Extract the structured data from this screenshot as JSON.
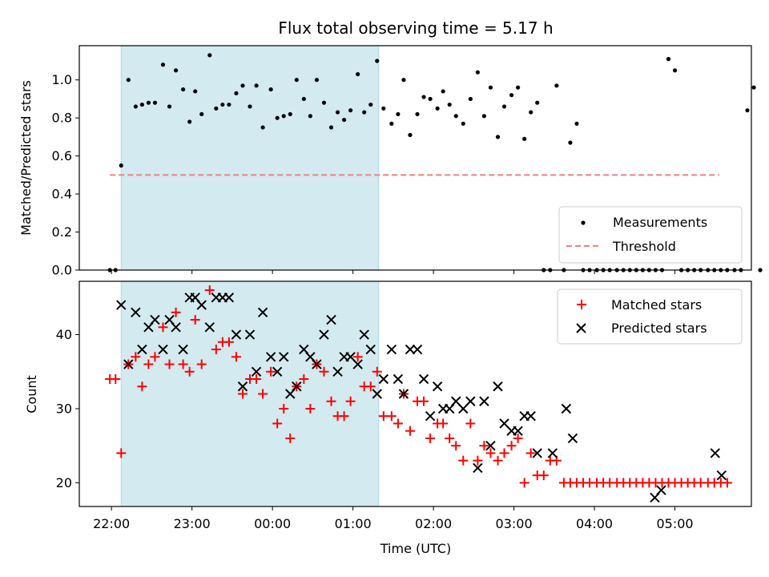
{
  "figure": {
    "title": "Flux total observing time = 5.17 h"
  },
  "chart_data": [
    {
      "type": "scatter",
      "panel": "top",
      "xlabel": "",
      "ylabel": "Matched/Predicted stars",
      "x_unit": "hours since 22:00 UTC",
      "xlim": [
        -0.4,
        7.95
      ],
      "ylim": [
        0,
        1.18
      ],
      "yticks": [
        0.0,
        0.2,
        0.4,
        0.6,
        0.8,
        1.0
      ],
      "yticklabels": [
        "0.0",
        "0.2",
        "0.4",
        "0.6",
        "0.8",
        "1.0"
      ],
      "observing_window": [
        0.12,
        3.32
      ],
      "observing_window_color": "#d3eaf0",
      "legend_position": "lower right",
      "series": [
        {
          "name": "Measurements",
          "marker": "dot",
          "color": "#000000",
          "x": [
            -0.02,
            0.05,
            0.12,
            0.21,
            0.3,
            0.38,
            0.46,
            0.54,
            0.64,
            0.72,
            0.8,
            0.89,
            0.97,
            1.04,
            1.12,
            1.22,
            1.3,
            1.38,
            1.46,
            1.55,
            1.63,
            1.72,
            1.8,
            1.88,
            1.98,
            2.06,
            2.14,
            2.22,
            2.3,
            2.39,
            2.47,
            2.55,
            2.64,
            2.73,
            2.81,
            2.89,
            2.97,
            3.06,
            3.14,
            3.22,
            3.3,
            3.38,
            3.48,
            3.56,
            3.63,
            3.71,
            3.8,
            3.88,
            3.96,
            4.05,
            4.12,
            4.2,
            4.28,
            4.37,
            4.46,
            4.55,
            4.63,
            4.71,
            4.8,
            4.88,
            4.97,
            5.05,
            5.13,
            5.21,
            5.29,
            5.37,
            5.45,
            5.53,
            5.62,
            5.7,
            5.78,
            5.86,
            5.94,
            6.03,
            6.11,
            6.19,
            6.28,
            6.36,
            6.44,
            6.52,
            6.6,
            6.68,
            6.76,
            6.84,
            6.92,
            7.0,
            7.08,
            7.16,
            7.24,
            7.32,
            7.41,
            7.49,
            7.57,
            7.65,
            7.74,
            7.82,
            7.9,
            7.98,
            8.06
          ],
          "y": [
            0.0,
            0.0,
            0.55,
            1.0,
            0.86,
            0.87,
            0.88,
            0.88,
            1.08,
            0.86,
            1.05,
            0.95,
            0.78,
            0.94,
            0.82,
            1.13,
            0.85,
            0.87,
            0.87,
            0.93,
            0.97,
            0.86,
            0.97,
            0.75,
            0.95,
            0.8,
            0.81,
            0.82,
            1.0,
            0.9,
            0.81,
            1.0,
            0.88,
            0.75,
            0.83,
            0.79,
            0.84,
            1.03,
            0.83,
            0.87,
            1.1,
            0.85,
            0.77,
            0.82,
            1.0,
            0.71,
            0.82,
            0.91,
            0.9,
            0.85,
            0.94,
            0.87,
            0.81,
            0.77,
            0.9,
            1.04,
            0.81,
            0.96,
            0.7,
            0.86,
            0.92,
            0.96,
            0.69,
            0.83,
            0.88,
            0.0,
            0.0,
            0.97,
            0.0,
            0.67,
            0.77,
            0.0,
            0.0,
            0.0,
            0.0,
            0.0,
            0.0,
            0.0,
            0.0,
            0.0,
            0.0,
            0.0,
            0.0,
            0.0,
            1.11,
            1.05,
            0.0,
            0.0,
            0.0,
            0.0,
            0.0,
            0.0,
            0.0,
            0.0,
            0.0,
            0.0,
            0.84,
            0.96,
            0.0
          ]
        },
        {
          "name": "Threshold",
          "type": "line",
          "style": "dashed",
          "color": "#f08080",
          "x": [
            -0.02,
            7.55
          ],
          "y": [
            0.5,
            0.5
          ]
        }
      ]
    },
    {
      "type": "scatter",
      "panel": "bottom",
      "xlabel": "Time (UTC)",
      "ylabel": "Count",
      "x_unit": "hours since 22:00 UTC",
      "xlim": [
        -0.4,
        7.95
      ],
      "ylim": [
        16.8,
        47.2
      ],
      "xticks": [
        0,
        1,
        2,
        3,
        4,
        5,
        6,
        7
      ],
      "xticklabels": [
        "22:00",
        "23:00",
        "00:00",
        "01:00",
        "02:00",
        "03:00",
        "04:00",
        "05:00"
      ],
      "yticks": [
        20,
        30,
        40
      ],
      "yticklabels": [
        "20",
        "30",
        "40"
      ],
      "observing_window": [
        0.12,
        3.32
      ],
      "observing_window_color": "#d3eaf0",
      "legend_position": "upper right",
      "series": [
        {
          "name": "Matched stars",
          "marker": "plus",
          "color": "#ff0000",
          "x": [
            -0.02,
            0.05,
            0.12,
            0.21,
            0.3,
            0.38,
            0.46,
            0.54,
            0.64,
            0.72,
            0.8,
            0.89,
            0.97,
            1.04,
            1.12,
            1.22,
            1.3,
            1.38,
            1.46,
            1.55,
            1.63,
            1.72,
            1.8,
            1.88,
            1.98,
            2.06,
            2.14,
            2.22,
            2.3,
            2.39,
            2.47,
            2.55,
            2.64,
            2.73,
            2.81,
            2.89,
            2.97,
            3.06,
            3.14,
            3.22,
            3.3,
            3.38,
            3.48,
            3.56,
            3.63,
            3.71,
            3.8,
            3.88,
            3.96,
            4.05,
            4.12,
            4.2,
            4.28,
            4.37,
            4.46,
            4.55,
            4.63,
            4.71,
            4.8,
            4.88,
            4.97,
            5.05,
            5.13,
            5.21,
            5.29,
            5.37,
            5.45,
            5.53,
            5.62,
            5.7,
            5.78,
            5.86,
            5.94,
            6.03,
            6.11,
            6.19,
            6.28,
            6.36,
            6.44,
            6.52,
            6.6,
            6.68,
            6.76,
            6.84,
            6.92,
            7.0,
            7.08,
            7.16,
            7.24,
            7.32,
            7.41,
            7.49,
            7.57,
            7.65
          ],
          "y": [
            34,
            34,
            24,
            36,
            37,
            33,
            36,
            37,
            41,
            36,
            43,
            36,
            35,
            42,
            36,
            46,
            38,
            39,
            39,
            37,
            32,
            34,
            34,
            32,
            35,
            28,
            30,
            26,
            33,
            34,
            30,
            36,
            35,
            31,
            29,
            29,
            31,
            37,
            33,
            33,
            35,
            29,
            29,
            28,
            32,
            27,
            31,
            31,
            26,
            28,
            28,
            26,
            25,
            23,
            28,
            23,
            25,
            24,
            23,
            24,
            25,
            26,
            20,
            24,
            21,
            21,
            23,
            23,
            20,
            20,
            20,
            20,
            20,
            20,
            20,
            20,
            20,
            20,
            20,
            20,
            20,
            20,
            20,
            20,
            20,
            20,
            20,
            20,
            20,
            20,
            20,
            20,
            20,
            20
          ]
        },
        {
          "name": "Predicted stars",
          "marker": "x",
          "color": "#000000",
          "x": [
            0.12,
            0.21,
            0.3,
            0.38,
            0.46,
            0.54,
            0.64,
            0.72,
            0.8,
            0.89,
            0.97,
            1.04,
            1.12,
            1.22,
            1.3,
            1.38,
            1.46,
            1.55,
            1.63,
            1.72,
            1.8,
            1.88,
            1.98,
            2.06,
            2.14,
            2.22,
            2.3,
            2.39,
            2.47,
            2.55,
            2.64,
            2.73,
            2.81,
            2.89,
            2.97,
            3.06,
            3.14,
            3.22,
            3.3,
            3.38,
            3.48,
            3.56,
            3.63,
            3.71,
            3.8,
            3.88,
            3.96,
            4.05,
            4.12,
            4.2,
            4.28,
            4.37,
            4.46,
            4.55,
            4.63,
            4.71,
            4.8,
            4.88,
            4.97,
            5.05,
            5.13,
            5.21,
            5.29,
            5.48,
            5.65,
            5.73,
            6.75,
            6.83,
            7.5,
            7.58
          ],
          "y": [
            44,
            36,
            43,
            38,
            41,
            42,
            38,
            42,
            41,
            38,
            45,
            45,
            44,
            41,
            45,
            45,
            45,
            40,
            33,
            40,
            35,
            43,
            37,
            35,
            37,
            32,
            33,
            38,
            37,
            36,
            40,
            42,
            35,
            37,
            37,
            36,
            40,
            38,
            32,
            34,
            38,
            34,
            32,
            38,
            38,
            34,
            29,
            33,
            30,
            30,
            31,
            30,
            31,
            22,
            31,
            25,
            33,
            28,
            27,
            27,
            29,
            29,
            24,
            24,
            30,
            26,
            18,
            19,
            24,
            21
          ]
        }
      ]
    }
  ]
}
